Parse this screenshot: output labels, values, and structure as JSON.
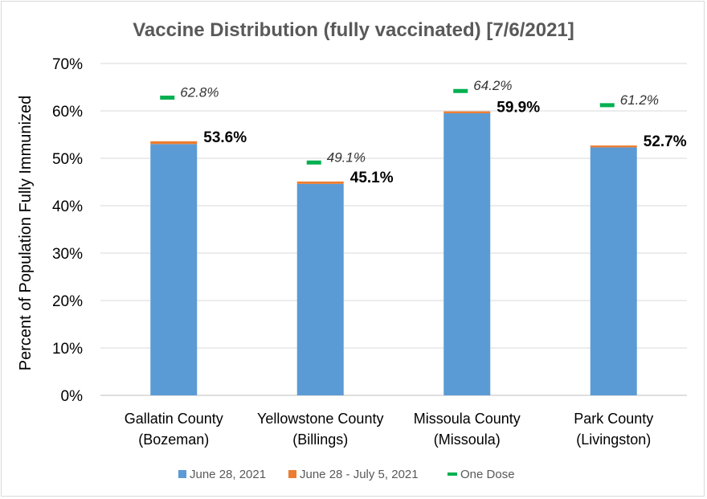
{
  "chart_data": {
    "type": "bar",
    "stacked": true,
    "title": "Vaccine Distribution (fully vaccinated) [7/6/2021]",
    "ylabel": "Percent of Population Fully Immunized",
    "xlabel": "",
    "ylim": [
      0,
      70
    ],
    "yticks": [
      "0%",
      "10%",
      "20%",
      "30%",
      "40%",
      "50%",
      "60%",
      "70%"
    ],
    "grid": true,
    "legend_position": "bottom",
    "categories": [
      [
        "Gallatin County",
        "(Bozeman)"
      ],
      [
        "Yellowstone County",
        "(Billings)"
      ],
      [
        "Missoula County",
        "(Missoula)"
      ],
      [
        "Park County",
        "(Livingston)"
      ]
    ],
    "series": [
      {
        "name": "June 28, 2021",
        "color": "#5b9bd5",
        "values": [
          53.0,
          44.6,
          59.5,
          52.3
        ]
      },
      {
        "name": "June 28 - July 5, 2021",
        "color": "#ed7d31",
        "values": [
          0.6,
          0.5,
          0.4,
          0.4
        ]
      }
    ],
    "totals": [
      "53.6%",
      "45.1%",
      "59.9%",
      "52.7%"
    ],
    "one_dose": {
      "name": "One Dose",
      "color": "#00b050",
      "values": [
        62.8,
        49.1,
        64.2,
        61.2
      ],
      "labels": [
        "62.8%",
        "49.1%",
        "64.2%",
        "61.2%"
      ]
    }
  }
}
